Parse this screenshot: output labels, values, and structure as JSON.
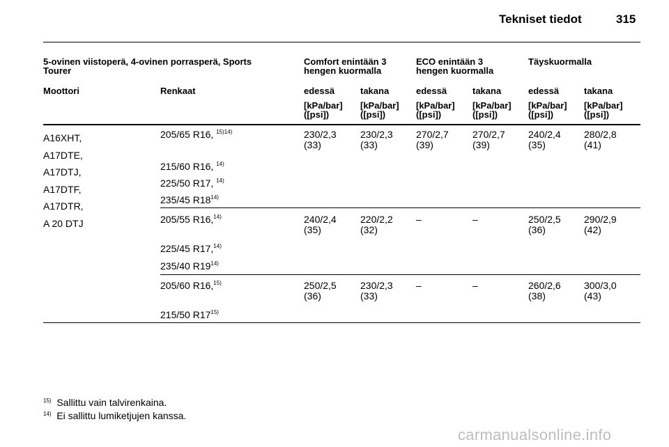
{
  "header": {
    "title": "Tekniset tiedot",
    "page_number": "315"
  },
  "table": {
    "group_header": {
      "col1": [
        "5-ovinen viistoperä, 4-ovinen porrasperä, Sports",
        "Tourer"
      ],
      "comfort": [
        "Comfort enintään 3",
        "hengen kuormalla"
      ],
      "eco": [
        "ECO enintään 3",
        "hengen kuormalla"
      ],
      "full": "Täyskuormalla"
    },
    "sub_header": {
      "engine": "Moottori",
      "tyres": "Renkaat",
      "front": "edessä",
      "rear": "takana",
      "unit_line1": "[kPa/bar]",
      "unit_line2": "([psi])"
    },
    "engines": [
      "A16XHT,",
      "A17DTE,",
      "A17DTJ,",
      "A17DTF,",
      "A17DTR,",
      "A 20 DTJ"
    ],
    "groups": [
      {
        "tyres": [
          {
            "size": "205/65 R16,",
            "note": "15)14)"
          },
          {
            "size": "215/60 R16,",
            "note": "14)"
          },
          {
            "size": "225/50 R17,",
            "note": "14)"
          },
          {
            "size": "235/45 R18",
            "note": "14)"
          }
        ],
        "pressures": [
          [
            "230/2,3",
            "(33)"
          ],
          [
            "230/2,3",
            "(33)"
          ],
          [
            "270/2,7",
            "(39)"
          ],
          [
            "270/2,7",
            "(39)"
          ],
          [
            "240/2,4",
            "(35)"
          ],
          [
            "280/2,8",
            "(41)"
          ]
        ]
      },
      {
        "tyres": [
          {
            "size": "205/55 R16,",
            "note": "14)"
          },
          {
            "size": "225/45 R17,",
            "note": "14)"
          },
          {
            "size": "235/40 R19",
            "note": "14)"
          }
        ],
        "pressures": [
          [
            "240/2,4",
            "(35)"
          ],
          [
            "220/2,2",
            "(32)"
          ],
          [
            "–",
            ""
          ],
          [
            "–",
            ""
          ],
          [
            "250/2,5",
            "(36)"
          ],
          [
            "290/2,9",
            "(42)"
          ]
        ]
      },
      {
        "tyres": [
          {
            "size": "205/60 R16,",
            "note": "15)"
          },
          {
            "size": "215/50 R17",
            "note": "15)"
          }
        ],
        "pressures": [
          [
            "250/2,5",
            "(36)"
          ],
          [
            "230/2,3",
            "(33)"
          ],
          [
            "–",
            ""
          ],
          [
            "–",
            ""
          ],
          [
            "260/2,6",
            "(38)"
          ],
          [
            "300/3,0",
            "(43)"
          ]
        ]
      }
    ]
  },
  "footnotes": [
    {
      "mark": "15)",
      "text": "Sallittu vain talvirenkaina."
    },
    {
      "mark": "14)",
      "text": "Ei sallittu lumiketjujen kanssa."
    }
  ],
  "watermark": "carmanualsonline.info"
}
